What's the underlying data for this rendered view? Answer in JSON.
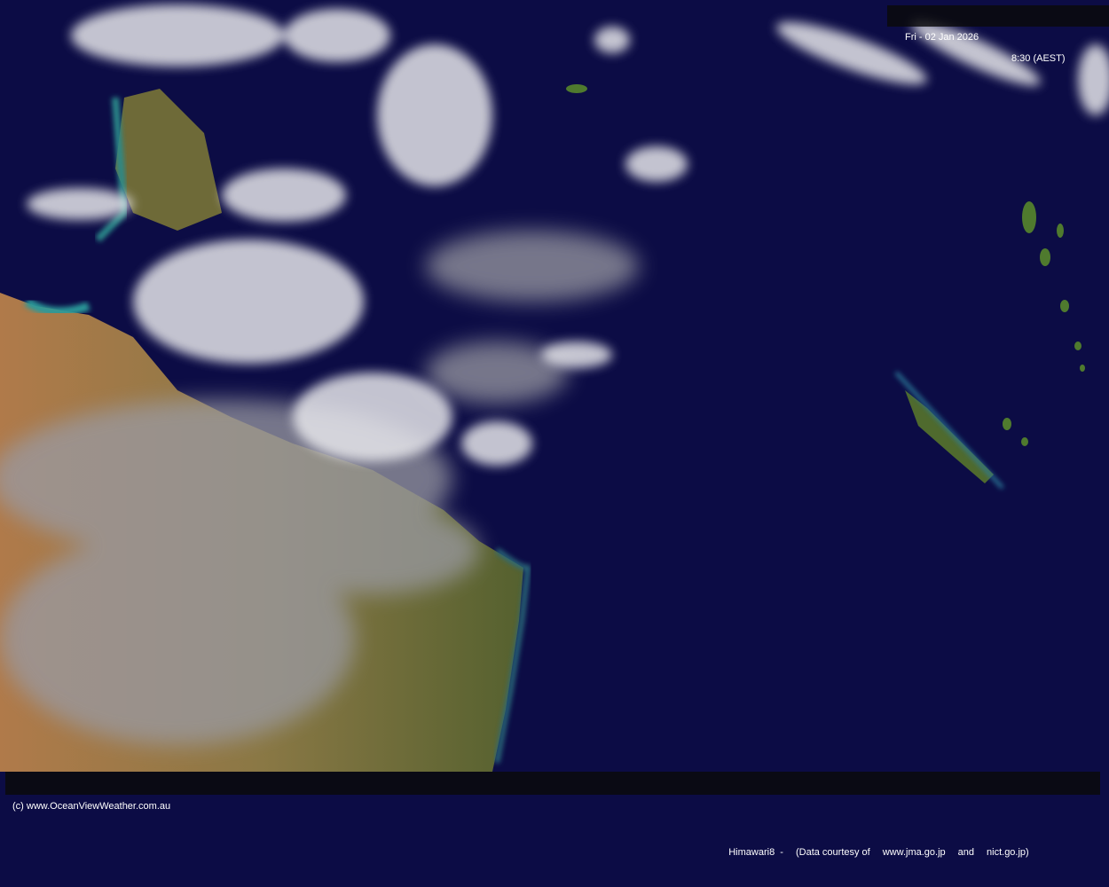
{
  "header": {
    "date": "Fri - 02 Jan 2026",
    "time": "8:30 (AEST)"
  },
  "footer": {
    "copyright": "(c) www.OceanViewWeather.com.au",
    "satellite": "Himawari8  -",
    "courtesy": "(Data courtesy of",
    "source1": "www.jma.go.jp",
    "and": "and",
    "source2": "nict.go.jp)"
  },
  "colors": {
    "ocean": "#0c0c45",
    "land": "#7a6a3a",
    "vegetation": "#4f5a2a",
    "cloud": "#e8e8e8"
  }
}
